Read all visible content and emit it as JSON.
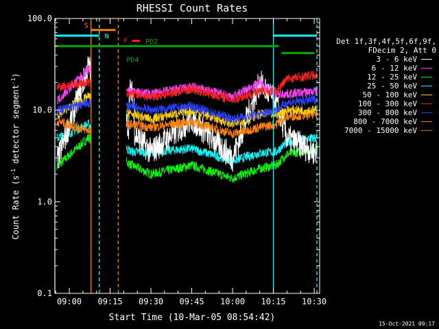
{
  "chart_data": {
    "type": "line",
    "title": "RHESSI Count Rates",
    "xlabel": "Start Time (10-Mar-05 08:54:42)",
    "ylabel": "Count Rate (s",
    "ylabel_sup": "-1",
    "ylabel_rest": " detector segment",
    "ylabel_sup2": "-1",
    "ylabel_end": ")",
    "y_scale": "log",
    "ylim": [
      0.1,
      100.0
    ],
    "xlim": [
      "08:54:42",
      "10:32:00"
    ],
    "x_ticks": [
      "09:00",
      "09:15",
      "09:30",
      "09:45",
      "10:00",
      "10:15",
      "10:30"
    ],
    "y_ticks": [
      "0.1",
      "1.0",
      "10.0",
      "100.0"
    ],
    "legend_position": "right",
    "legend_header": [
      "Det 1f,3f,4f,5f,6f,9f,",
      "FDecim 2, Att 0"
    ],
    "series": [
      {
        "name": "3 - 6 keV",
        "color": "#ffffff",
        "level": [
          3.0,
          30,
          6.0,
          3.5,
          8.0,
          3.0,
          20.0,
          12.0,
          5.0,
          3.5
        ]
      },
      {
        "name": "6 - 12 keV",
        "color": "#ff40ff",
        "level": [
          13.0,
          28,
          16.0,
          15.0,
          18.0,
          14.0,
          20.0,
          15.0,
          15.0,
          16.0
        ]
      },
      {
        "name": "12 - 25 keV",
        "color": "#00ff00",
        "level": [
          2.5,
          5,
          2.5,
          2.0,
          2.5,
          1.8,
          2.3,
          2.5,
          3.3,
          3.8
        ]
      },
      {
        "name": "25 - 50 keV",
        "color": "#00ffff",
        "level": [
          5.0,
          7,
          3.5,
          3.5,
          3.8,
          2.8,
          3.4,
          3.5,
          4.5,
          5.0
        ]
      },
      {
        "name": "50 - 100 keV",
        "color": "#ffd000",
        "level": [
          9.0,
          14,
          9.0,
          8.0,
          10.0,
          7.0,
          9.0,
          9.0,
          10.0,
          10.0
        ]
      },
      {
        "name": "100 - 300 keV",
        "color": "#ff2020",
        "level": [
          18.0,
          20,
          15.0,
          14.0,
          17.0,
          13.0,
          16.0,
          16.0,
          22.0,
          24.0
        ]
      },
      {
        "name": "300 - 800 keV",
        "color": "#2a40ff",
        "level": [
          10.0,
          12,
          11.0,
          10.0,
          11.0,
          8.0,
          9.0,
          10.0,
          12.0,
          13.0
        ]
      },
      {
        "name": "800 - 7000 keV",
        "color": "#ff8000",
        "level": [
          7.5,
          6,
          7.0,
          6.5,
          7.5,
          5.5,
          6.5,
          7.0,
          8.5,
          9.0
        ]
      },
      {
        "name": "7000 - 15000 keV",
        "color": "#b08000",
        "level": [
          0,
          0,
          0,
          0,
          0,
          0,
          0,
          0,
          0,
          0
        ]
      }
    ],
    "level_times": [
      "08:56",
      "09:07",
      "09:23",
      "09:30",
      "09:45",
      "10:00",
      "10:10",
      "10:16",
      "10:20",
      "10:30"
    ],
    "gaps": [
      [
        "09:08",
        "09:21"
      ]
    ],
    "annotations": [
      {
        "label": "S",
        "color": "#ff8000",
        "y": 75,
        "x_start": "09:08",
        "x_end": "09:17"
      },
      {
        "label": "N",
        "color": "#00ffff",
        "y": 65,
        "x_start": "08:54:42",
        "x_end": "09:11"
      },
      {
        "label": "F",
        "color": "#ff2020",
        "y": 57,
        "x_start": "09:23",
        "x_end": "09:26"
      },
      {
        "label": "PD2",
        "color": "#00aa00",
        "y": 50,
        "x_start": "08:54:42",
        "x_end": "10:17"
      },
      {
        "label": "PD4",
        "color": "#00aa00",
        "y": 42,
        "x_start": "10:18",
        "x_end": "10:30"
      },
      {
        "label": "",
        "color": "#00ffff",
        "y": 65,
        "x_start": "10:15",
        "x_end": "10:31"
      }
    ],
    "vertical_lines": [
      {
        "x": "08:54:42",
        "color": "#00ffff",
        "style": "solid"
      },
      {
        "x": "09:08",
        "color": "#ff8000",
        "style": "solid"
      },
      {
        "x": "09:11",
        "color": "#00ffff",
        "style": "dashed"
      },
      {
        "x": "09:18",
        "color": "#ff8000",
        "style": "dashed"
      },
      {
        "x": "10:15",
        "color": "#00ffff",
        "style": "solid"
      },
      {
        "x": "10:31",
        "color": "#00ffff",
        "style": "dashed"
      }
    ],
    "footer": "15-Oct-2021 09:17"
  }
}
